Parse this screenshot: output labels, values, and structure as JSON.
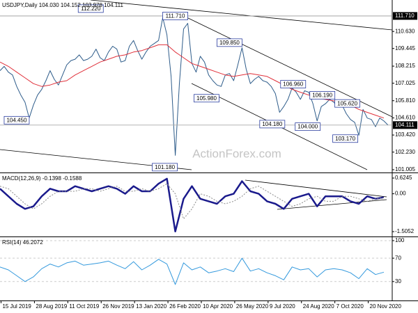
{
  "chart_data": [
    {
      "type": "line",
      "title": "USDJPY,Daily 104.030 104.152 103.978 104.111",
      "watermark": "ActionForex.com",
      "xlim": [
        0,
        376
      ],
      "ylim": [
        100.81,
        112.82
      ],
      "yticks": [
        {
          "value": 110.63,
          "label": "110.630"
        },
        {
          "value": 109.445,
          "label": "109.445"
        },
        {
          "value": 108.215,
          "label": "108.215"
        },
        {
          "value": 107.025,
          "label": "107.025"
        },
        {
          "value": 105.81,
          "label": "105.810"
        },
        {
          "value": 104.61,
          "label": "104.610"
        },
        {
          "value": 103.42,
          "label": "103.420"
        },
        {
          "value": 102.23,
          "label": "102.230"
        },
        {
          "value": 101.005,
          "label": "101.005"
        }
      ],
      "hline": {
        "value": 111.71,
        "label": "111.710"
      },
      "last_price": {
        "value": 104.111,
        "label": "104.111"
      },
      "series": [
        {
          "color": "#2e5c8a",
          "width": 1,
          "x": [
            0,
            4,
            8,
            12,
            16,
            20,
            24,
            28,
            32,
            36,
            40,
            44,
            48,
            52,
            56,
            60,
            64,
            68,
            72,
            76,
            80,
            84,
            88,
            92,
            96,
            100,
            104,
            108,
            112,
            116,
            120,
            124,
            128,
            132,
            136,
            140,
            144,
            148,
            152,
            156,
            160,
            164,
            168,
            172,
            176,
            180,
            184,
            188,
            192,
            196,
            200,
            204,
            208,
            212,
            216,
            220,
            224,
            228,
            232,
            236,
            240,
            244,
            248,
            252,
            256,
            260,
            264,
            268,
            272,
            276,
            280,
            284,
            288,
            292,
            296,
            300,
            304,
            308,
            312,
            316,
            320,
            324,
            328,
            332,
            336,
            340,
            344,
            348,
            352,
            356,
            360,
            364,
            368,
            372
          ],
          "values": [
            107.9,
            108.2,
            107.8,
            107.6,
            106.8,
            106.2,
            105.7,
            104.6,
            105.5,
            106.2,
            106.6,
            107.2,
            107.9,
            107.3,
            106.9,
            107.6,
            108.3,
            108.6,
            108.7,
            109.0,
            108.6,
            108.7,
            108.9,
            109.4,
            108.8,
            108.6,
            109.2,
            109.6,
            109.4,
            108.5,
            108.6,
            109.6,
            110.0,
            109.3,
            108.7,
            109.2,
            109.6,
            109.8,
            110.0,
            111.6,
            110.4,
            107.5,
            102.0,
            107.0,
            110.8,
            111.2,
            108.4,
            107.8,
            108.9,
            108.5,
            107.6,
            107.2,
            106.9,
            106.8,
            107.6,
            107.7,
            107.2,
            108.3,
            109.5,
            108.0,
            107.0,
            107.3,
            107.5,
            107.2,
            107.1,
            106.8,
            106.3,
            105.0,
            105.4,
            105.9,
            106.7,
            106.4,
            105.9,
            106.5,
            106.4,
            105.6,
            104.4,
            105.4,
            105.6,
            105.9,
            105.7,
            105.4,
            105.5,
            104.9,
            104.5,
            104.3,
            103.4,
            105.2,
            104.6,
            104.5,
            104.0,
            104.6,
            104.4,
            104.11
          ]
        },
        {
          "color": "#e0303a",
          "width": 1,
          "x": [
            0,
            8,
            16,
            24,
            32,
            40,
            48,
            56,
            64,
            72,
            80,
            88,
            96,
            104,
            112,
            120,
            128,
            136,
            144,
            152,
            160,
            168,
            176,
            184,
            192,
            200,
            208,
            216,
            224,
            232,
            240,
            248,
            256,
            264,
            272,
            280,
            288,
            296,
            304,
            312,
            320,
            328,
            336,
            344,
            352,
            360,
            368
          ],
          "values": [
            108.5,
            108.2,
            107.8,
            107.4,
            107.0,
            106.8,
            106.9,
            107.1,
            107.2,
            107.6,
            107.9,
            108.2,
            108.5,
            108.7,
            108.9,
            109.0,
            109.2,
            109.3,
            109.5,
            109.7,
            109.7,
            109.2,
            108.8,
            108.4,
            108.2,
            108.0,
            107.8,
            107.6,
            107.5,
            107.6,
            107.7,
            107.6,
            107.5,
            107.2,
            106.9,
            106.6,
            106.4,
            106.2,
            106.0,
            105.9,
            105.8,
            105.7,
            105.5,
            105.2,
            105.0,
            104.8,
            104.6
          ]
        }
      ],
      "annotations": [
        {
          "x": 87,
          "value": 112.22,
          "label": "112.220"
        },
        {
          "x": 168,
          "value": 111.71,
          "label": "111.710"
        },
        {
          "x": 220,
          "value": 109.85,
          "label": "109.850"
        },
        {
          "x": 281,
          "value": 106.96,
          "label": "106.960"
        },
        {
          "x": 309,
          "value": 106.19,
          "label": "106.190"
        },
        {
          "x": 333,
          "value": 105.62,
          "label": "105.620"
        },
        {
          "x": 198,
          "value": 105.98,
          "label": "105.980"
        },
        {
          "x": 16,
          "value": 104.45,
          "label": "104.450"
        },
        {
          "x": 261,
          "value": 104.18,
          "label": "104.180"
        },
        {
          "x": 295,
          "value": 104.0,
          "label": "104.000"
        },
        {
          "x": 331,
          "value": 103.17,
          "label": "103.170"
        },
        {
          "x": 158,
          "value": 101.18,
          "label": "101.180"
        }
      ]
    },
    {
      "type": "line",
      "title": "MACD(12,26,9) -0.1398 -0.1588",
      "xlim": [
        0,
        376
      ],
      "ylim": [
        -1.699,
        0.818
      ],
      "yticks": [
        0.6245,
        {
          "value": 0,
          "label": "0.00"
        },
        -1.5052
      ],
      "series": [
        {
          "color": "#1a1a8c",
          "width": 2.5,
          "x": [
            0,
            8,
            16,
            24,
            32,
            40,
            48,
            56,
            64,
            72,
            80,
            88,
            96,
            104,
            112,
            120,
            128,
            136,
            144,
            152,
            160,
            168,
            176,
            184,
            192,
            200,
            208,
            216,
            224,
            232,
            240,
            248,
            256,
            264,
            272,
            280,
            288,
            296,
            304,
            312,
            320,
            328,
            336,
            344,
            352,
            360,
            368
          ],
          "values": [
            0.2,
            -0.1,
            -0.4,
            -0.6,
            -0.5,
            -0.1,
            0.2,
            0.1,
            0.1,
            0.3,
            0.2,
            0.1,
            0.2,
            0.3,
            0.2,
            0.0,
            0.3,
            0.1,
            0.1,
            0.4,
            0.6,
            -1.5,
            -0.2,
            0.3,
            -0.2,
            -0.3,
            -0.4,
            -0.1,
            0.0,
            0.5,
            0.1,
            0.0,
            -0.3,
            -0.4,
            -0.6,
            -0.2,
            -0.1,
            0.0,
            -0.5,
            -0.1,
            -0.1,
            -0.1,
            -0.3,
            -0.4,
            -0.1,
            -0.2,
            -0.14
          ]
        },
        {
          "color": "#888888",
          "width": 1,
          "dash": "2,2",
          "x": [
            0,
            8,
            16,
            24,
            32,
            40,
            48,
            56,
            64,
            72,
            80,
            88,
            96,
            104,
            112,
            120,
            128,
            136,
            144,
            152,
            160,
            168,
            176,
            184,
            192,
            200,
            208,
            216,
            224,
            232,
            240,
            248,
            256,
            264,
            272,
            280,
            288,
            296,
            304,
            312,
            320,
            328,
            336,
            344,
            352,
            360,
            368
          ],
          "values": [
            0.3,
            0.2,
            -0.1,
            -0.4,
            -0.6,
            -0.4,
            -0.1,
            0.1,
            0.1,
            0.1,
            0.2,
            0.2,
            0.1,
            0.2,
            0.3,
            0.1,
            0.1,
            0.2,
            0.1,
            0.2,
            0.4,
            0.0,
            -1.0,
            -0.6,
            0.0,
            -0.1,
            -0.3,
            -0.4,
            -0.3,
            -0.1,
            0.2,
            0.3,
            0.1,
            -0.1,
            -0.3,
            -0.5,
            -0.4,
            -0.2,
            -0.1,
            -0.3,
            -0.3,
            -0.1,
            -0.1,
            -0.2,
            -0.3,
            -0.2,
            -0.16
          ]
        }
      ]
    },
    {
      "type": "line",
      "title": "RSI(14) 46.2072",
      "xlim": [
        0,
        376
      ],
      "ylim": [
        -2.4,
        105.9
      ],
      "yticks": [
        100,
        70,
        30
      ],
      "grid": true,
      "xticks": [
        {
          "value": 1,
          "label": "15 Jul 2019"
        },
        {
          "value": 33,
          "label": "28 Aug 2019"
        },
        {
          "value": 65,
          "label": "11 Oct 2019"
        },
        {
          "value": 97,
          "label": "26 Nov 2019"
        },
        {
          "value": 129,
          "label": "13 Jan 2020"
        },
        {
          "value": 161,
          "label": "26 Feb 2020"
        },
        {
          "value": 193,
          "label": "10 Apr 2020"
        },
        {
          "value": 225,
          "label": "26 May 2020"
        },
        {
          "value": 257,
          "label": "9 Jul 2020"
        },
        {
          "value": 289,
          "label": "24 Aug 2020"
        },
        {
          "value": 321,
          "label": "7 Oct 2020"
        },
        {
          "value": 353,
          "label": "20 Nov 2020"
        }
      ],
      "series": [
        {
          "color": "#3399dd",
          "width": 1,
          "x": [
            0,
            8,
            16,
            24,
            32,
            40,
            48,
            56,
            64,
            72,
            80,
            88,
            96,
            104,
            112,
            120,
            128,
            136,
            144,
            152,
            160,
            168,
            176,
            184,
            192,
            200,
            208,
            216,
            224,
            232,
            240,
            248,
            256,
            264,
            272,
            280,
            288,
            296,
            304,
            312,
            320,
            328,
            336,
            344,
            352,
            360,
            368
          ],
          "values": [
            55,
            50,
            40,
            30,
            38,
            52,
            60,
            55,
            62,
            65,
            58,
            60,
            62,
            65,
            58,
            52,
            64,
            50,
            58,
            68,
            60,
            25,
            62,
            50,
            55,
            45,
            48,
            52,
            47,
            70,
            48,
            52,
            45,
            40,
            33,
            55,
            50,
            52,
            38,
            50,
            52,
            50,
            45,
            35,
            52,
            42,
            46
          ]
        }
      ]
    }
  ]
}
